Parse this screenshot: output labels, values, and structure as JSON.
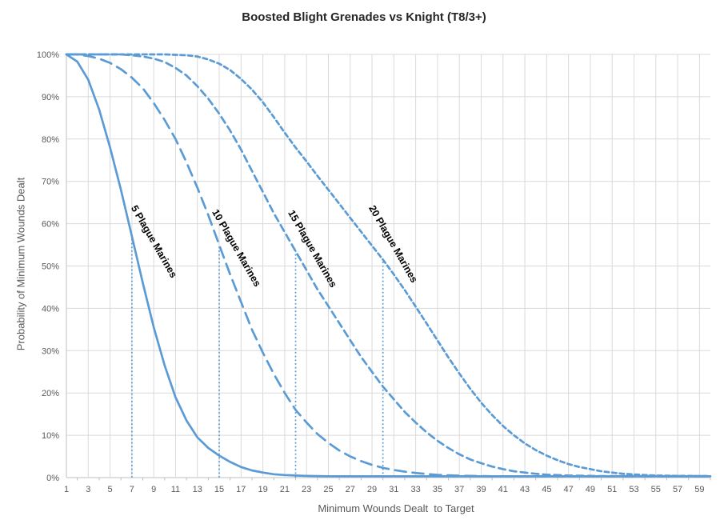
{
  "chart_data": {
    "type": "line",
    "title": "Boosted Blight Grenades vs Knight (T8/3+)",
    "xlabel": "Minimum Wounds Dealt  to Target",
    "ylabel": "Probability of Minimum Wounds Dealt",
    "xlim": [
      1,
      60
    ],
    "ylim_percent": [
      0,
      100
    ],
    "grid": true,
    "x_ticks": [
      1,
      3,
      5,
      7,
      9,
      11,
      13,
      15,
      17,
      19,
      21,
      23,
      25,
      27,
      29,
      31,
      33,
      35,
      37,
      39,
      41,
      43,
      45,
      47,
      49,
      51,
      53,
      55,
      57,
      59
    ],
    "y_tick_labels": [
      "0%",
      "10%",
      "20%",
      "30%",
      "40%",
      "50%",
      "60%",
      "70%",
      "80%",
      "90%",
      "100%"
    ],
    "x_values": "integers 1 through 60",
    "series": [
      {
        "name": "5 Plague Marines",
        "line_style": "solid",
        "median_x": 7,
        "values": [
          100,
          98.3,
          94,
          87,
          78,
          68,
          57,
          46,
          35.5,
          26.5,
          19,
          13.5,
          9.5,
          7,
          5.2,
          3.7,
          2.5,
          1.7,
          1.2,
          0.8,
          0.6,
          0.5,
          0.4,
          0.35,
          0.3,
          0.3,
          0.3,
          0.3,
          0.3,
          0.3,
          0.3,
          0.3,
          0.3,
          0.3,
          0.3,
          0.3,
          0.3,
          0.3,
          0.3,
          0.3,
          0.3,
          0.3,
          0.3,
          0.3,
          0.3,
          0.3,
          0.3,
          0.3,
          0.3,
          0.3,
          0.3,
          0.3,
          0.3,
          0.3,
          0.3,
          0.3,
          0.3,
          0.3,
          0.3,
          0.3
        ]
      },
      {
        "name": "10 Plague Marines",
        "line_style": "long-dash",
        "median_x": 15,
        "values": [
          100,
          100,
          99.6,
          99,
          98,
          96.5,
          94.5,
          92,
          88.5,
          84.5,
          80,
          74.5,
          68.5,
          62,
          55,
          48,
          41.5,
          35,
          29.5,
          24.5,
          20,
          16,
          13,
          10.3,
          8.2,
          6.4,
          5,
          3.9,
          3,
          2.3,
          1.8,
          1.4,
          1.1,
          0.85,
          0.65,
          0.55,
          0.45,
          0.4,
          0.35,
          0.3,
          0.3,
          0.3,
          0.3,
          0.3,
          0.3,
          0.3,
          0.3,
          0.3,
          0.3,
          0.3,
          0.3,
          0.3,
          0.3,
          0.3,
          0.3,
          0.3,
          0.3,
          0.3,
          0.3,
          0.3
        ]
      },
      {
        "name": "15 Plague Marines",
        "line_style": "medium-dash",
        "median_x": 22,
        "values": [
          100,
          100,
          100,
          100,
          100,
          100,
          99.8,
          99.5,
          99,
          98.2,
          96.8,
          95,
          92.5,
          89.5,
          86,
          82,
          77.5,
          72.5,
          67.5,
          62.5,
          58,
          53.5,
          49,
          44.5,
          40.5,
          36.5,
          32.5,
          28.5,
          25,
          21.5,
          18.5,
          15.5,
          13,
          10.7,
          8.7,
          7,
          5.5,
          4.3,
          3.4,
          2.6,
          2,
          1.5,
          1.2,
          0.9,
          0.7,
          0.6,
          0.5,
          0.45,
          0.4,
          0.35,
          0.35,
          0.35,
          0.35,
          0.35,
          0.35,
          0.35,
          0.35,
          0.35,
          0.35,
          0.35
        ]
      },
      {
        "name": "20 Plague Marines",
        "line_style": "short-dash",
        "median_x": 30,
        "values": [
          100,
          100,
          100,
          100,
          100,
          100,
          100,
          100,
          100,
          100,
          99.9,
          99.8,
          99.5,
          98.8,
          97.8,
          96.3,
          94.2,
          91.7,
          88.7,
          85.2,
          81.5,
          78,
          74.7,
          71.3,
          68,
          64.7,
          61.4,
          58.1,
          54.8,
          51.5,
          48,
          44.3,
          40.4,
          36.4,
          32.4,
          28.4,
          24.6,
          21,
          17.7,
          14.8,
          12.2,
          10,
          8.1,
          6.5,
          5.2,
          4.1,
          3.2,
          2.5,
          2,
          1.5,
          1.2,
          0.9,
          0.75,
          0.6,
          0.5,
          0.45,
          0.4,
          0.4,
          0.35,
          0.35
        ]
      }
    ],
    "legend_position": "none (labels drawn along curves)",
    "colors": {
      "line": "#5B9BD5",
      "gridline": "#D9D9D9",
      "axis_line": "#BFBFBF",
      "tick_text": "#595959",
      "axis_title_text": "#595959",
      "chart_title_text": "#262626",
      "curve_label_text": "#000000",
      "background": "#FFFFFF"
    }
  }
}
